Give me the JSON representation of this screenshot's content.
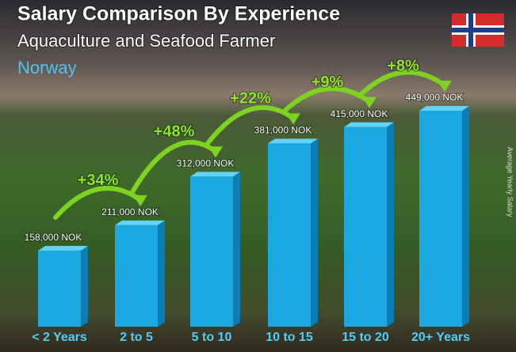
{
  "chart_data": {
    "type": "bar",
    "title": "Salary Comparison By Experience",
    "subtitle": "Aquaculture and Seafood Farmer",
    "country": "Norway",
    "side_label": "Average Yearly Salary",
    "categories": [
      "< 2 Years",
      "2 to 5",
      "5 to 10",
      "10 to 15",
      "15 to 20",
      "20+ Years"
    ],
    "values": [
      158000,
      211000,
      312000,
      381000,
      415000,
      449000
    ],
    "value_labels": [
      "158,000 NOK",
      "211,000 NOK",
      "312,000 NOK",
      "381,000 NOK",
      "415,000 NOK",
      "449,000 NOK"
    ],
    "changes": [
      "+34%",
      "+48%",
      "+22%",
      "+9%",
      "+8%"
    ],
    "color": "#1ba8e0"
  }
}
